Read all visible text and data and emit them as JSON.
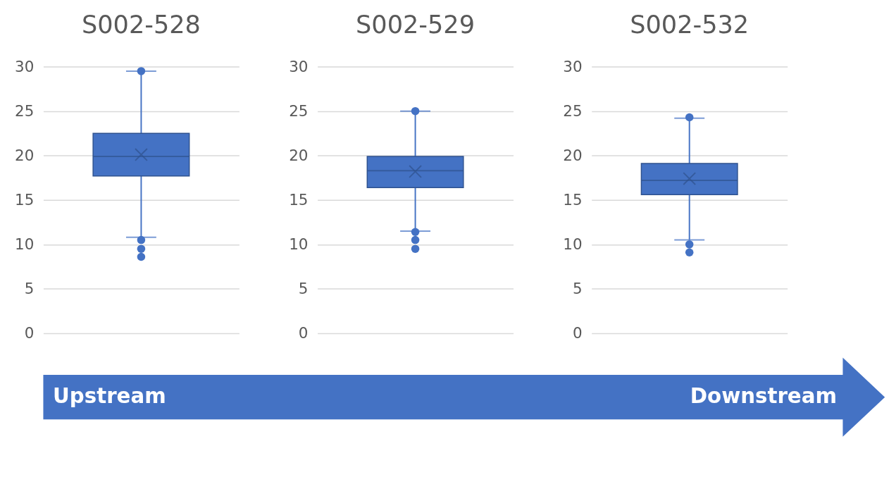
{
  "chart_data": [
    {
      "type": "box",
      "title": "S002-528",
      "categories": [
        null
      ],
      "color": "#4472c4",
      "ylim": [
        0,
        30
      ],
      "yticks": [
        0,
        5,
        10,
        15,
        20,
        25,
        30
      ],
      "grid": "y",
      "tick_labels": "y",
      "boxes": [
        {
          "low": 10.8,
          "q1": 17.7,
          "median": 19.9,
          "q3": 22.5,
          "high": 29.5,
          "mean": 20.1,
          "outliers": [
            29.5,
            10.5,
            9.5,
            8.6
          ]
        }
      ]
    },
    {
      "type": "box",
      "title": "S002-529",
      "categories": [
        null
      ],
      "color": "#4472c4",
      "ylim": [
        0,
        30
      ],
      "yticks": [
        0,
        5,
        10,
        15,
        20,
        25,
        30
      ],
      "grid": "y",
      "tick_labels": "y",
      "boxes": [
        {
          "low": 11.5,
          "q1": 16.4,
          "median": 18.3,
          "q3": 19.9,
          "high": 25.0,
          "mean": 18.2,
          "outliers": [
            25.0,
            11.4,
            10.5,
            9.5
          ]
        }
      ]
    },
    {
      "type": "box",
      "title": "S002-532",
      "categories": [
        null
      ],
      "color": "#4472c4",
      "ylim": [
        0,
        30
      ],
      "yticks": [
        0,
        5,
        10,
        15,
        20,
        25,
        30
      ],
      "grid": "y",
      "tick_labels": "y",
      "boxes": [
        {
          "low": 10.5,
          "q1": 15.6,
          "median": 17.2,
          "q3": 19.1,
          "high": 24.2,
          "mean": 17.4,
          "outliers": [
            24.3,
            10.0,
            9.1
          ]
        }
      ]
    },
    {
      "type": "other",
      "color": "#4472c4",
      "annotations": [
        "Upstream",
        "Downstream"
      ]
    }
  ]
}
